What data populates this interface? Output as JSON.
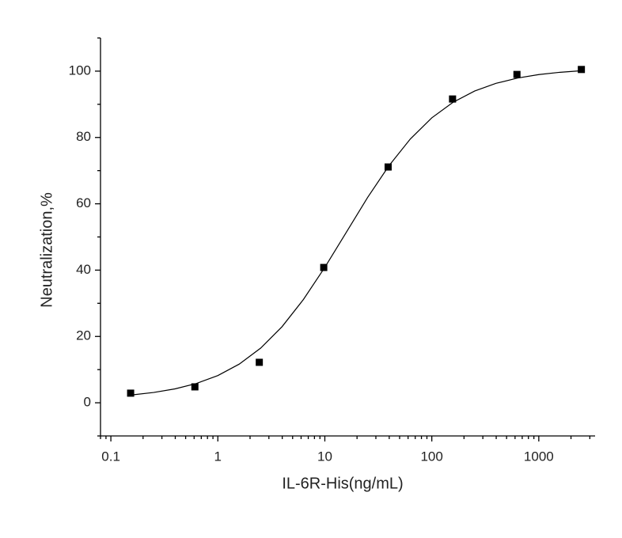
{
  "chart_data": {
    "type": "scatter",
    "x_label": "IL-6R-His(ng/mL)",
    "y_label": "Neutralization,%",
    "x": [
      0.153,
      0.61,
      2.44,
      9.77,
      39.06,
      156.25,
      625,
      2500
    ],
    "values": [
      2.9,
      4.8,
      12.2,
      40.8,
      71.1,
      91.6,
      99.0,
      100.5
    ],
    "color": "#000000",
    "curve": {
      "x": [
        0.158,
        0.251,
        0.398,
        0.631,
        1,
        1.585,
        2.512,
        3.981,
        6.31,
        10,
        15.85,
        25.12,
        39.81,
        63.1,
        100,
        158.5,
        251.2,
        398.1,
        631,
        1000,
        1585,
        2512
      ],
      "values": [
        2.38,
        3.1,
        4.2,
        5.83,
        8.21,
        11.66,
        16.48,
        22.94,
        31.15,
        40.83,
        51.37,
        61.91,
        71.5,
        79.58,
        85.92,
        90.63,
        93.99,
        96.32,
        97.9,
        98.96,
        99.66,
        100.12
      ],
      "color": "#000000"
    },
    "xlog": true,
    "xlim": [
      0.08,
      3360
    ],
    "xticks": [
      0.1,
      1,
      10,
      100,
      1000
    ],
    "ylim": [
      -10,
      110
    ],
    "yticks": [
      0,
      20,
      40,
      60,
      80,
      100
    ],
    "grid": false
  }
}
